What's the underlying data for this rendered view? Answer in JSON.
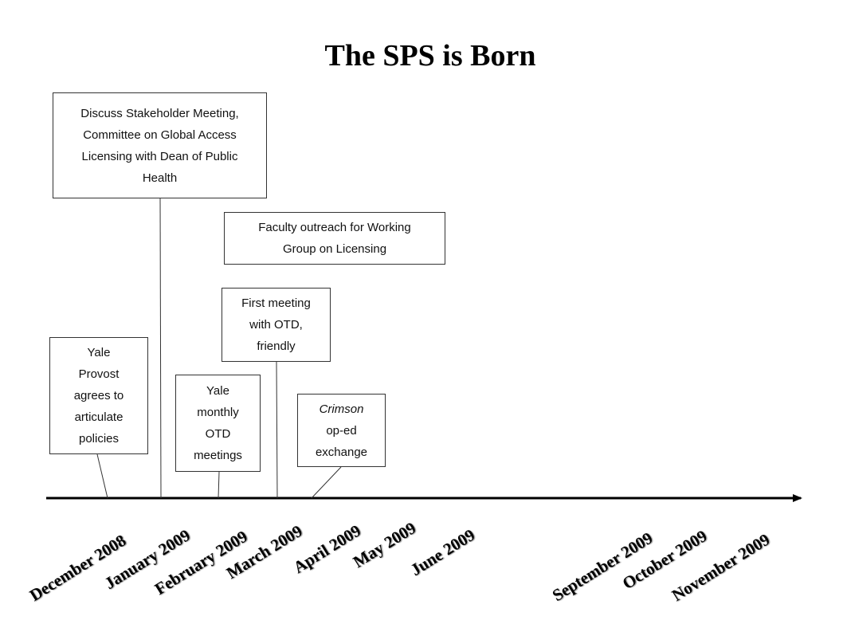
{
  "title": "The SPS is Born",
  "events": {
    "stakeholder": [
      "Discuss Stakeholder Meeting,",
      "Committee on Global Access",
      "Licensing with Dean of Public",
      "Health"
    ],
    "faculty": [
      "Faculty  outreach for Working",
      "Group on Licensing"
    ],
    "first_meeting": [
      "First meeting",
      "with OTD,",
      "friendly"
    ],
    "yale_provost": [
      "Yale",
      "Provost",
      "agrees to",
      "articulate",
      "policies"
    ],
    "yale_monthly": [
      "Yale",
      "monthly",
      "OTD",
      "meetings"
    ],
    "crimson": {
      "italic": "Crimson",
      "rest": [
        "op-ed",
        "exchange"
      ]
    }
  },
  "timeline": {
    "months": [
      "December 2008",
      "January 2009",
      "February 2009",
      "March 2009",
      "April 2009",
      "May 2009",
      "June 2009",
      "September 2009",
      "October 2009",
      "November 2009"
    ]
  }
}
